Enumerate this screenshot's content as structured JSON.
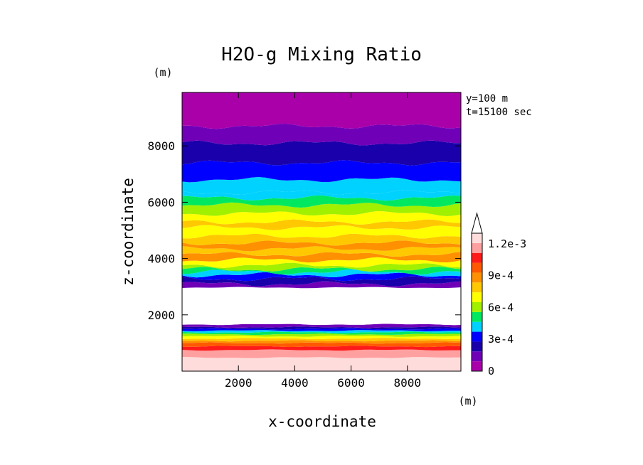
{
  "chart_data": {
    "type": "heatmap",
    "title": "H2O-g Mixing Ratio",
    "xlabel": "x-coordinate",
    "ylabel": "z-coordinate",
    "x_unit": "(m)",
    "y_unit": "(m)",
    "xlim": [
      0,
      9900
    ],
    "ylim": [
      0,
      9900
    ],
    "x_ticks": [
      2000,
      4000,
      6000,
      8000
    ],
    "y_ticks": [
      2000,
      4000,
      6000,
      8000
    ],
    "annotations": [
      "y=100 m",
      "t=15100 sec"
    ],
    "colorbar": {
      "min": 0,
      "max": 0.0013,
      "step": 0.0001,
      "extend": "max",
      "tick_values": [
        0,
        0.0003,
        0.0006,
        0.0009,
        0.0012
      ],
      "tick_labels": [
        "0",
        "3e-4",
        "6e-4",
        "9e-4",
        "1.2e-3"
      ],
      "colors": [
        "#aa00aa",
        "#7000b8",
        "#1a00aa",
        "#0000ff",
        "#00d2ff",
        "#00e860",
        "#a0f000",
        "#ffff00",
        "#ffc800",
        "#ff9000",
        "#ff5800",
        "#ff1a1a",
        "#ffa0a0",
        "#ffdcdc"
      ]
    },
    "layers": [
      {
        "z": [
          0,
          480
        ],
        "level": 13,
        "value": 0.00125
      },
      {
        "z": [
          480,
          750
        ],
        "level": 12,
        "value": 0.00115
      },
      {
        "z": [
          750,
          880
        ],
        "level": 11,
        "value": 0.00105
      },
      {
        "z": [
          880,
          1000
        ],
        "level": 10,
        "value": 0.00095
      },
      {
        "z": [
          1000,
          1080
        ],
        "level": 9,
        "value": 0.00085
      },
      {
        "z": [
          1080,
          1160
        ],
        "level": 8,
        "value": 0.00075
      },
      {
        "z": [
          1160,
          1240
        ],
        "level": 7,
        "value": 0.00065
      },
      {
        "z": [
          1240,
          1310
        ],
        "level": 6,
        "value": 0.00055
      },
      {
        "z": [
          1310,
          1380
        ],
        "level": 5,
        "value": 0.00045
      },
      {
        "z": [
          1380,
          1440
        ],
        "level": 4,
        "value": 0.00035
      },
      {
        "z": [
          1440,
          1500
        ],
        "level": 3,
        "value": 0.00025
      },
      {
        "z": [
          1500,
          1560
        ],
        "level": 2,
        "value": 0.00015
      },
      {
        "z": [
          1560,
          1660
        ],
        "level": 1,
        "value": 5e-05
      },
      {
        "z": [
          1660,
          2970
        ],
        "level": -1,
        "value": null
      },
      {
        "z": [
          2970,
          3100
        ],
        "level": 1,
        "value": 5e-05
      },
      {
        "z": [
          3100,
          3280
        ],
        "level": 2,
        "value": 0.00015
      },
      {
        "z": [
          3280,
          3420
        ],
        "level": 3,
        "value": 0.00025
      },
      {
        "z": [
          3420,
          3520
        ],
        "level": 4,
        "value": 0.00035
      },
      {
        "z": [
          3520,
          3620
        ],
        "level": 5,
        "value": 0.00045
      },
      {
        "z": [
          3620,
          3760
        ],
        "level": 6,
        "value": 0.00055
      },
      {
        "z": [
          3760,
          3950
        ],
        "level": 7,
        "value": 0.00065
      },
      {
        "z": [
          3950,
          4150
        ],
        "level": 9,
        "value": 0.00085
      },
      {
        "z": [
          4150,
          4350
        ],
        "level": 8,
        "value": 0.00075
      },
      {
        "z": [
          4350,
          4550
        ],
        "level": 9,
        "value": 0.00085
      },
      {
        "z": [
          4550,
          4800
        ],
        "level": 8,
        "value": 0.00075
      },
      {
        "z": [
          4800,
          5100
        ],
        "level": 7,
        "value": 0.00065
      },
      {
        "z": [
          5100,
          5300
        ],
        "level": 8,
        "value": 0.00075
      },
      {
        "z": [
          5300,
          5600
        ],
        "level": 7,
        "value": 0.00065
      },
      {
        "z": [
          5600,
          5900
        ],
        "level": 6,
        "value": 0.00055
      },
      {
        "z": [
          5900,
          6150
        ],
        "level": 5,
        "value": 0.00045
      },
      {
        "z": [
          6150,
          6350
        ],
        "level": 4,
        "value": 0.00035
      },
      {
        "z": [
          6350,
          6800
        ],
        "level": 4,
        "value": 0.00035
      },
      {
        "z": [
          6800,
          7400
        ],
        "level": 3,
        "value": 0.00025
      },
      {
        "z": [
          7400,
          8100
        ],
        "level": 2,
        "value": 0.00015
      },
      {
        "z": [
          8100,
          8700
        ],
        "level": 1,
        "value": 5e-05
      },
      {
        "z": [
          8700,
          9900
        ],
        "level": 0,
        "value": 2e-05
      }
    ]
  }
}
